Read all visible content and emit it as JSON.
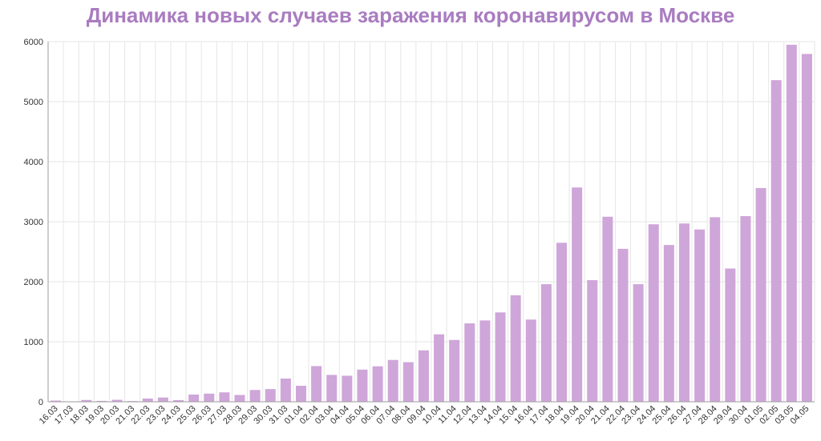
{
  "title": "Динамика новых случаев заражения коронавирусом в Москве",
  "colors": {
    "bar": "#cfa6d9",
    "title": "#a97cc0",
    "grid": "#e6e6e6",
    "axis": "#9e9e9e"
  },
  "chart_data": {
    "type": "bar",
    "title": "Динамика новых случаев заражения коронавирусом в Москве",
    "xlabel": "",
    "ylabel": "",
    "ylim": [
      0,
      6000
    ],
    "yticks": [
      0,
      1000,
      2000,
      3000,
      4000,
      5000,
      6000
    ],
    "grid": true,
    "categories": [
      "16.03",
      "17.03",
      "18.03",
      "19.03",
      "20.03",
      "21.03",
      "22.03",
      "23.03",
      "24.03",
      "25.03",
      "26.03",
      "27.03",
      "28.03",
      "29.03",
      "30.03",
      "31.03",
      "01.04",
      "02.04",
      "03.04",
      "04.04",
      "05.04",
      "06.04",
      "07.04",
      "08.04",
      "09.04",
      "10.04",
      "11.04",
      "12.04",
      "13.04",
      "14.04",
      "15.04",
      "16.04",
      "17.04",
      "18.04",
      "19.04",
      "20.04",
      "21.04",
      "22.04",
      "23.04",
      "24.04",
      "25.04",
      "26.04",
      "27.04",
      "28.04",
      "29.04",
      "30.04",
      "01.05",
      "02.05",
      "03.05",
      "04.05"
    ],
    "values": [
      20,
      6,
      30,
      15,
      33,
      12,
      54,
      71,
      28,
      120,
      136,
      157,
      114,
      197,
      212,
      387,
      267,
      595,
      448,
      434,
      536,
      591,
      697,
      660,
      857,
      1124,
      1030,
      1306,
      1355,
      1489,
      1774,
      1370,
      1959,
      2649,
      3570,
      2026,
      3083,
      2548,
      1959,
      2957,
      2612,
      2971,
      2871,
      3075,
      2220,
      3093,
      3561,
      5358,
      5948,
      5795
    ]
  }
}
